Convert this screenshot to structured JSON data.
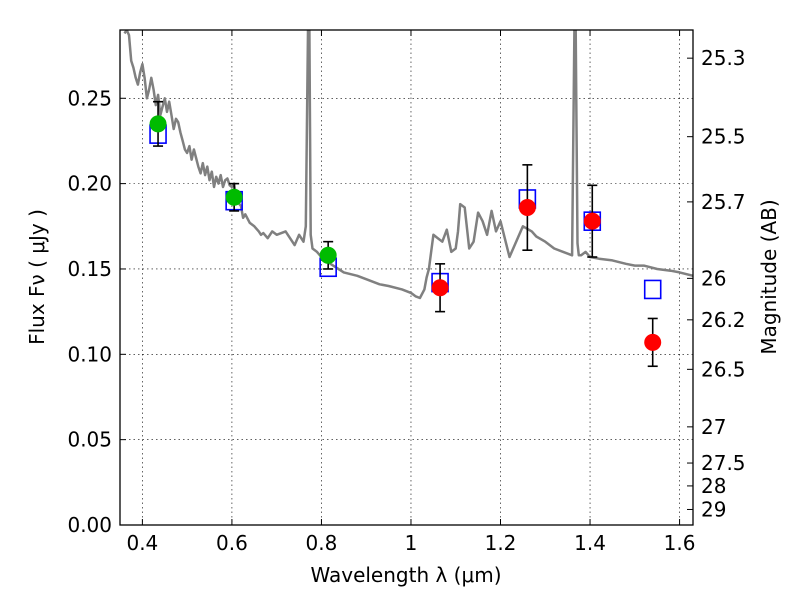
{
  "chart_data": {
    "type": "scatter",
    "xlabel": "Wavelength  λ (μm)",
    "ylabel": "Flux  Fν  ( μJy )",
    "ylabel_right": "Magnitude (AB)",
    "xlim": [
      0.35,
      1.63
    ],
    "ylim": [
      0.0,
      0.29
    ],
    "grid": true,
    "x_ticks": [
      "0.4",
      "0.6",
      "0.8",
      "1",
      "1.2",
      "1.4",
      "1.6"
    ],
    "x_tick_values": [
      0.4,
      0.6,
      0.8,
      1.0,
      1.2,
      1.4,
      1.6
    ],
    "y_ticks": [
      "0.00",
      "0.05",
      "0.10",
      "0.15",
      "0.20",
      "0.25"
    ],
    "y_tick_values": [
      0.0,
      0.05,
      0.1,
      0.15,
      0.2,
      0.25
    ],
    "right_ticks": [
      "25.3",
      "25.5",
      "25.7",
      "26",
      "26.2",
      "26.5",
      "27",
      "27.5",
      "28",
      "29"
    ],
    "right_tick_fluxes": [
      0.2735,
      0.2275,
      0.1893,
      0.1445,
      0.1202,
      0.0912,
      0.0575,
      0.0363,
      0.0229,
      0.0091
    ],
    "colors": {
      "model": "#808080",
      "model_bands": "#0000ff",
      "optical": "#00bb00",
      "nir": "#ff0000",
      "errorbar": "#000000"
    },
    "series": [
      {
        "role": "model",
        "kind": "line",
        "x": [
          0.36,
          0.365,
          0.37,
          0.375,
          0.38,
          0.385,
          0.39,
          0.395,
          0.4,
          0.405,
          0.41,
          0.415,
          0.42,
          0.425,
          0.43,
          0.435,
          0.44,
          0.445,
          0.45,
          0.455,
          0.46,
          0.465,
          0.47,
          0.475,
          0.48,
          0.485,
          0.49,
          0.495,
          0.5,
          0.505,
          0.51,
          0.515,
          0.52,
          0.525,
          0.53,
          0.535,
          0.54,
          0.545,
          0.55,
          0.555,
          0.56,
          0.565,
          0.57,
          0.575,
          0.58,
          0.585,
          0.59,
          0.595,
          0.6,
          0.605,
          0.61,
          0.62,
          0.625,
          0.63,
          0.64,
          0.65,
          0.66,
          0.665,
          0.67,
          0.68,
          0.69,
          0.7,
          0.72,
          0.74,
          0.75,
          0.76,
          0.765,
          0.77,
          0.773,
          0.776,
          0.78,
          0.79,
          0.8,
          0.81,
          0.82,
          0.85,
          0.88,
          0.9,
          0.93,
          0.95,
          0.98,
          1.0,
          1.01,
          1.02,
          1.03,
          1.035,
          1.04,
          1.05,
          1.06,
          1.07,
          1.08,
          1.09,
          1.1,
          1.105,
          1.11,
          1.12,
          1.13,
          1.14,
          1.15,
          1.16,
          1.17,
          1.18,
          1.19,
          1.2,
          1.22,
          1.25,
          1.27,
          1.28,
          1.3,
          1.32,
          1.34,
          1.36,
          1.365,
          1.368,
          1.372,
          1.375,
          1.38,
          1.39,
          1.4,
          1.42,
          1.45,
          1.48,
          1.5,
          1.52,
          1.55,
          1.58,
          1.6,
          1.63
        ],
        "y": [
          0.288,
          0.29,
          0.287,
          0.272,
          0.268,
          0.262,
          0.258,
          0.265,
          0.27,
          0.262,
          0.25,
          0.255,
          0.262,
          0.255,
          0.246,
          0.252,
          0.24,
          0.245,
          0.25,
          0.242,
          0.248,
          0.24,
          0.232,
          0.238,
          0.236,
          0.23,
          0.225,
          0.22,
          0.218,
          0.222,
          0.214,
          0.22,
          0.215,
          0.21,
          0.206,
          0.212,
          0.205,
          0.21,
          0.202,
          0.207,
          0.198,
          0.204,
          0.2,
          0.205,
          0.198,
          0.202,
          0.203,
          0.199,
          0.198,
          0.2,
          0.19,
          0.187,
          0.18,
          0.182,
          0.177,
          0.175,
          0.172,
          0.17,
          0.171,
          0.168,
          0.172,
          0.17,
          0.172,
          0.164,
          0.17,
          0.166,
          0.175,
          0.29,
          0.29,
          0.17,
          0.162,
          0.16,
          0.157,
          0.155,
          0.153,
          0.148,
          0.146,
          0.144,
          0.141,
          0.14,
          0.138,
          0.136,
          0.134,
          0.133,
          0.138,
          0.145,
          0.15,
          0.17,
          0.168,
          0.166,
          0.173,
          0.16,
          0.162,
          0.172,
          0.188,
          0.186,
          0.162,
          0.166,
          0.183,
          0.178,
          0.17,
          0.184,
          0.172,
          0.178,
          0.157,
          0.175,
          0.172,
          0.169,
          0.166,
          0.162,
          0.16,
          0.158,
          0.29,
          0.29,
          0.165,
          0.158,
          0.158,
          0.16,
          0.157,
          0.156,
          0.155,
          0.153,
          0.152,
          0.152,
          0.15,
          0.149,
          0.148,
          0.146
        ]
      },
      {
        "role": "model_bands",
        "kind": "open-square",
        "x": [
          0.435,
          0.605,
          0.815,
          1.065,
          1.26,
          1.405,
          1.54
        ],
        "y": [
          0.229,
          0.19,
          0.151,
          0.142,
          0.191,
          0.178,
          0.138
        ]
      },
      {
        "role": "optical",
        "kind": "filled-circle",
        "x": [
          0.435,
          0.605,
          0.815
        ],
        "y": [
          0.235,
          0.192,
          0.158
        ],
        "yerr": [
          0.013,
          0.008,
          0.008
        ]
      },
      {
        "role": "nir",
        "kind": "filled-circle",
        "x": [
          1.065,
          1.26,
          1.405,
          1.54
        ],
        "y": [
          0.139,
          0.186,
          0.178,
          0.107
        ],
        "yerr": [
          0.014,
          0.025,
          0.021,
          0.014
        ]
      }
    ]
  }
}
